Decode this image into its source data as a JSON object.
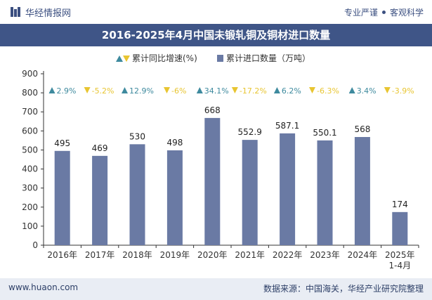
{
  "header": {
    "brand": "华经情报网",
    "tagline_left": "专业严谨",
    "tagline_right": "客观科学"
  },
  "footer": {
    "website": "www.huaon.com",
    "source": "数据来源：中国海关，华经产业研究院整理"
  },
  "colors": {
    "bar": "#6a7aa4",
    "up": "#3e8a9e",
    "down": "#e8c531",
    "title_bg": "#3f5587"
  },
  "chart_data": {
    "type": "bar",
    "title": "2016-2025年4月中国未锻轧铜及铜材进口数量",
    "categories": [
      "2016年",
      "2017年",
      "2018年",
      "2019年",
      "2020年",
      "2021年",
      "2022年",
      "2023年",
      "2024年",
      "2025年\n1-4月"
    ],
    "series": [
      {
        "name": "累计进口数量（万吨）",
        "values": [
          495,
          469,
          530,
          498,
          668,
          552.9,
          587.1,
          550.1,
          568,
          174
        ]
      },
      {
        "name": "累计同比增速(%)",
        "values": [
          2.9,
          -5.2,
          12.9,
          -6,
          34.1,
          -17.2,
          6.2,
          -6.3,
          3.4,
          -3.9
        ]
      }
    ],
    "value_labels": [
      "495",
      "469",
      "530",
      "498",
      "668",
      "552.9",
      "587.1",
      "550.1",
      "568",
      "174"
    ],
    "growth_labels": [
      "2.9%",
      "-5.2%",
      "12.9%",
      "-6%",
      "34.1%",
      "-17.2%",
      "6.2%",
      "-6.3%",
      "3.4%",
      "-3.9%"
    ],
    "yticks": [
      "0",
      "100",
      "200",
      "300",
      "400",
      "500",
      "600",
      "700",
      "800",
      "900"
    ],
    "ylim": [
      0,
      900
    ],
    "xlabel": "",
    "ylabel": "",
    "legend": {
      "position": "top",
      "items": [
        "累计同比增速(%)",
        "累计进口数量（万吨）"
      ]
    },
    "grid": false
  }
}
